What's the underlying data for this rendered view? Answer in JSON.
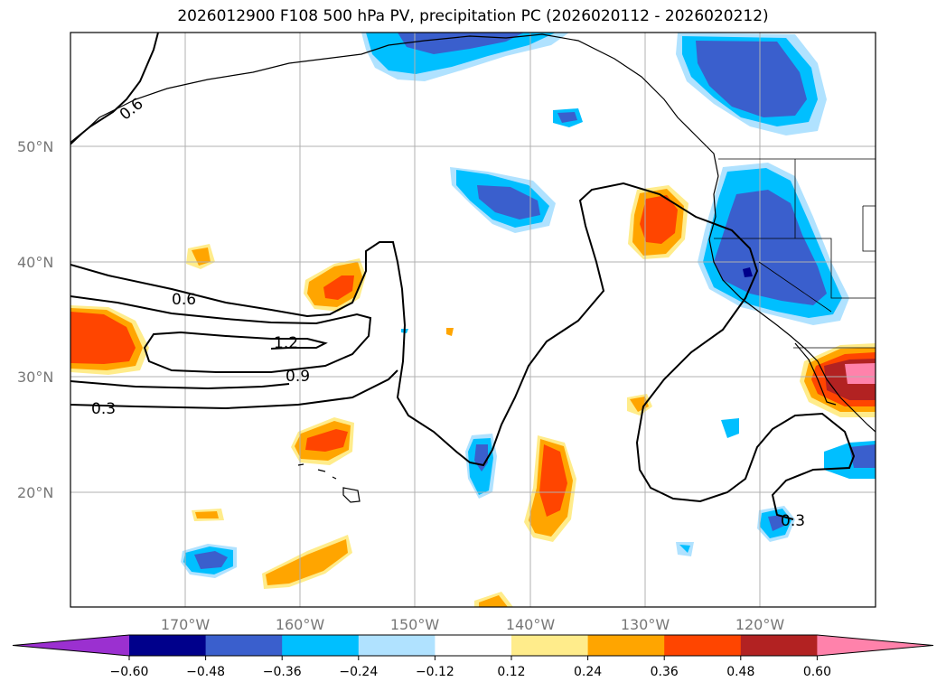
{
  "title": "2026012900 F108 500 hPa PV, precipitation PC (2026020112 - 2026020212)",
  "lat_labels": [
    "50°N",
    "40°N",
    "30°N",
    "20°N"
  ],
  "lon_labels": [
    "170°W",
    "160°W",
    "150°W",
    "140°W",
    "130°W",
    "120°W"
  ],
  "pv_contour_labels": [
    "0.6",
    "0.6",
    "1.2",
    "0.9",
    "0.3",
    "0.3"
  ],
  "colorbar": {
    "ticks": [
      "−0.60",
      "−0.48",
      "−0.36",
      "−0.24",
      "−0.12",
      "0.12",
      "0.24",
      "0.36",
      "0.48",
      "0.60"
    ],
    "colors": [
      "#9b30d0",
      "#00008b",
      "#3a5fcd",
      "#00bfff",
      "#b0e2ff",
      "#ffffff",
      "#ffec8b",
      "#ffa500",
      "#ff4500",
      "#b22222",
      "#ff82ab"
    ]
  }
}
